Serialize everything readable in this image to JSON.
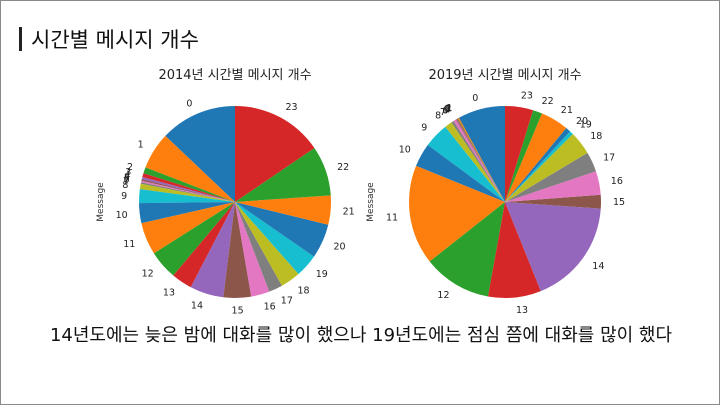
{
  "slide": {
    "heading": "시간별 메시지 개수",
    "caption": "14년도에는 늦은 밤에 대화를 많이 했으나 19년도에는 점심 쯤에 대화를 많이 했다"
  },
  "palette": [
    "#1f77b4",
    "#ff7f0e",
    "#2ca02c",
    "#d62728",
    "#9467bd",
    "#8c564b",
    "#e377c2",
    "#7f7f7f",
    "#bcbd22",
    "#17becf"
  ],
  "chart_data": [
    {
      "type": "pie",
      "title": "2014년 시간별 메시지 개수",
      "ylabel": "Message",
      "start_angle_deg": 90,
      "direction": "counterclockwise",
      "categories": [
        "0",
        "1",
        "2",
        "3",
        "4",
        "5",
        "6",
        "7",
        "8",
        "9",
        "10",
        "11",
        "12",
        "13",
        "14",
        "15",
        "16",
        "17",
        "18",
        "19",
        "20",
        "21",
        "22",
        "23"
      ],
      "values": [
        100,
        48,
        8,
        5,
        3,
        2,
        2,
        2,
        7,
        18,
        26,
        42,
        38,
        27,
        44,
        36,
        24,
        18,
        26,
        30,
        45,
        38,
        65,
        120
      ]
    },
    {
      "type": "pie",
      "title": "2019년 시간별 메시지 개수",
      "ylabel": "Message",
      "start_angle_deg": 90,
      "direction": "counterclockwise",
      "categories": [
        "0",
        "1",
        "2",
        "3",
        "4",
        "5",
        "6",
        "7",
        "8",
        "9",
        "10",
        "11",
        "12",
        "13",
        "14",
        "15",
        "16",
        "17",
        "18",
        "19",
        "20",
        "21",
        "22",
        "23"
      ],
      "values": [
        76,
        2,
        1,
        1,
        1,
        1,
        4,
        4,
        12,
        40,
        38,
        160,
        110,
        85,
        170,
        22,
        38,
        32,
        38,
        6,
        8,
        45,
        15,
        45
      ]
    }
  ]
}
